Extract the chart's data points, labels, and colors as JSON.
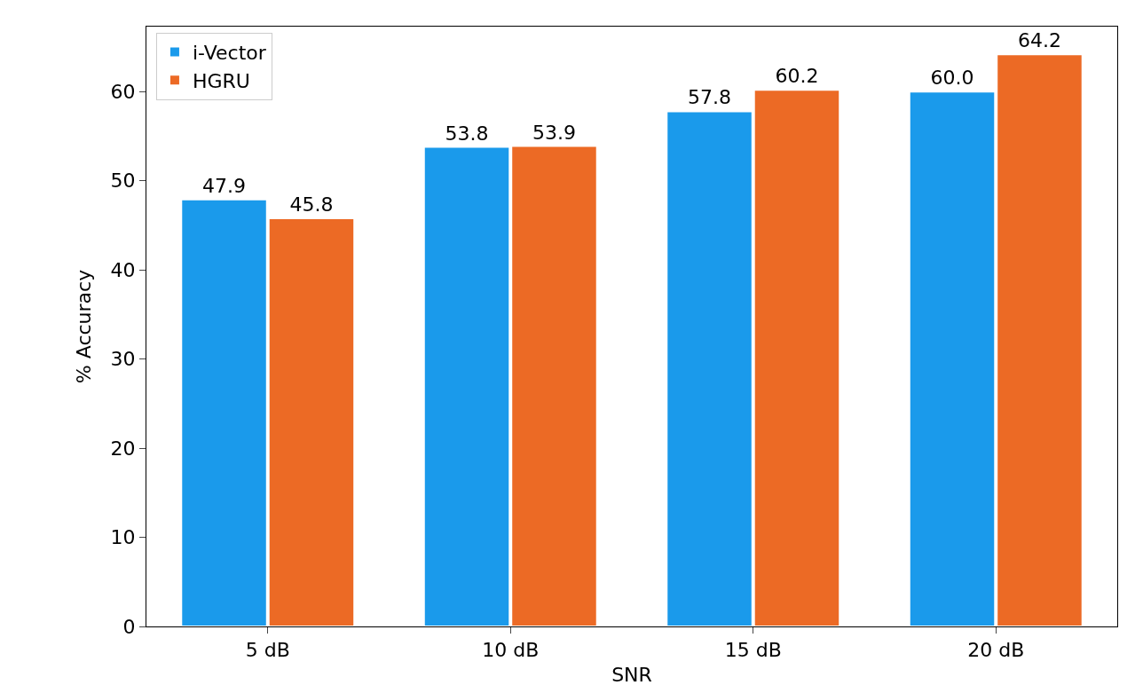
{
  "chart_data": {
    "type": "bar",
    "xlabel": "SNR",
    "ylabel": "% Accuracy",
    "categories": [
      "5 dB",
      "10 dB",
      "15 dB",
      "20 dB"
    ],
    "series": [
      {
        "name": "i-Vector",
        "color": "#1a9aeb",
        "values": [
          47.9,
          53.8,
          57.8,
          60.0
        ],
        "value_labels": [
          "47.9",
          "53.8",
          "57.8",
          "60.0"
        ]
      },
      {
        "name": "HGRU",
        "color": "#ec6a25",
        "values": [
          45.8,
          53.9,
          60.2,
          64.2
        ],
        "value_labels": [
          "45.8",
          "53.9",
          "60.2",
          "64.2"
        ]
      }
    ],
    "ylim": [
      0,
      67.3
    ],
    "yticks": [
      0,
      10,
      20,
      30,
      40,
      50,
      60
    ],
    "grid": false,
    "legend": "top left"
  }
}
